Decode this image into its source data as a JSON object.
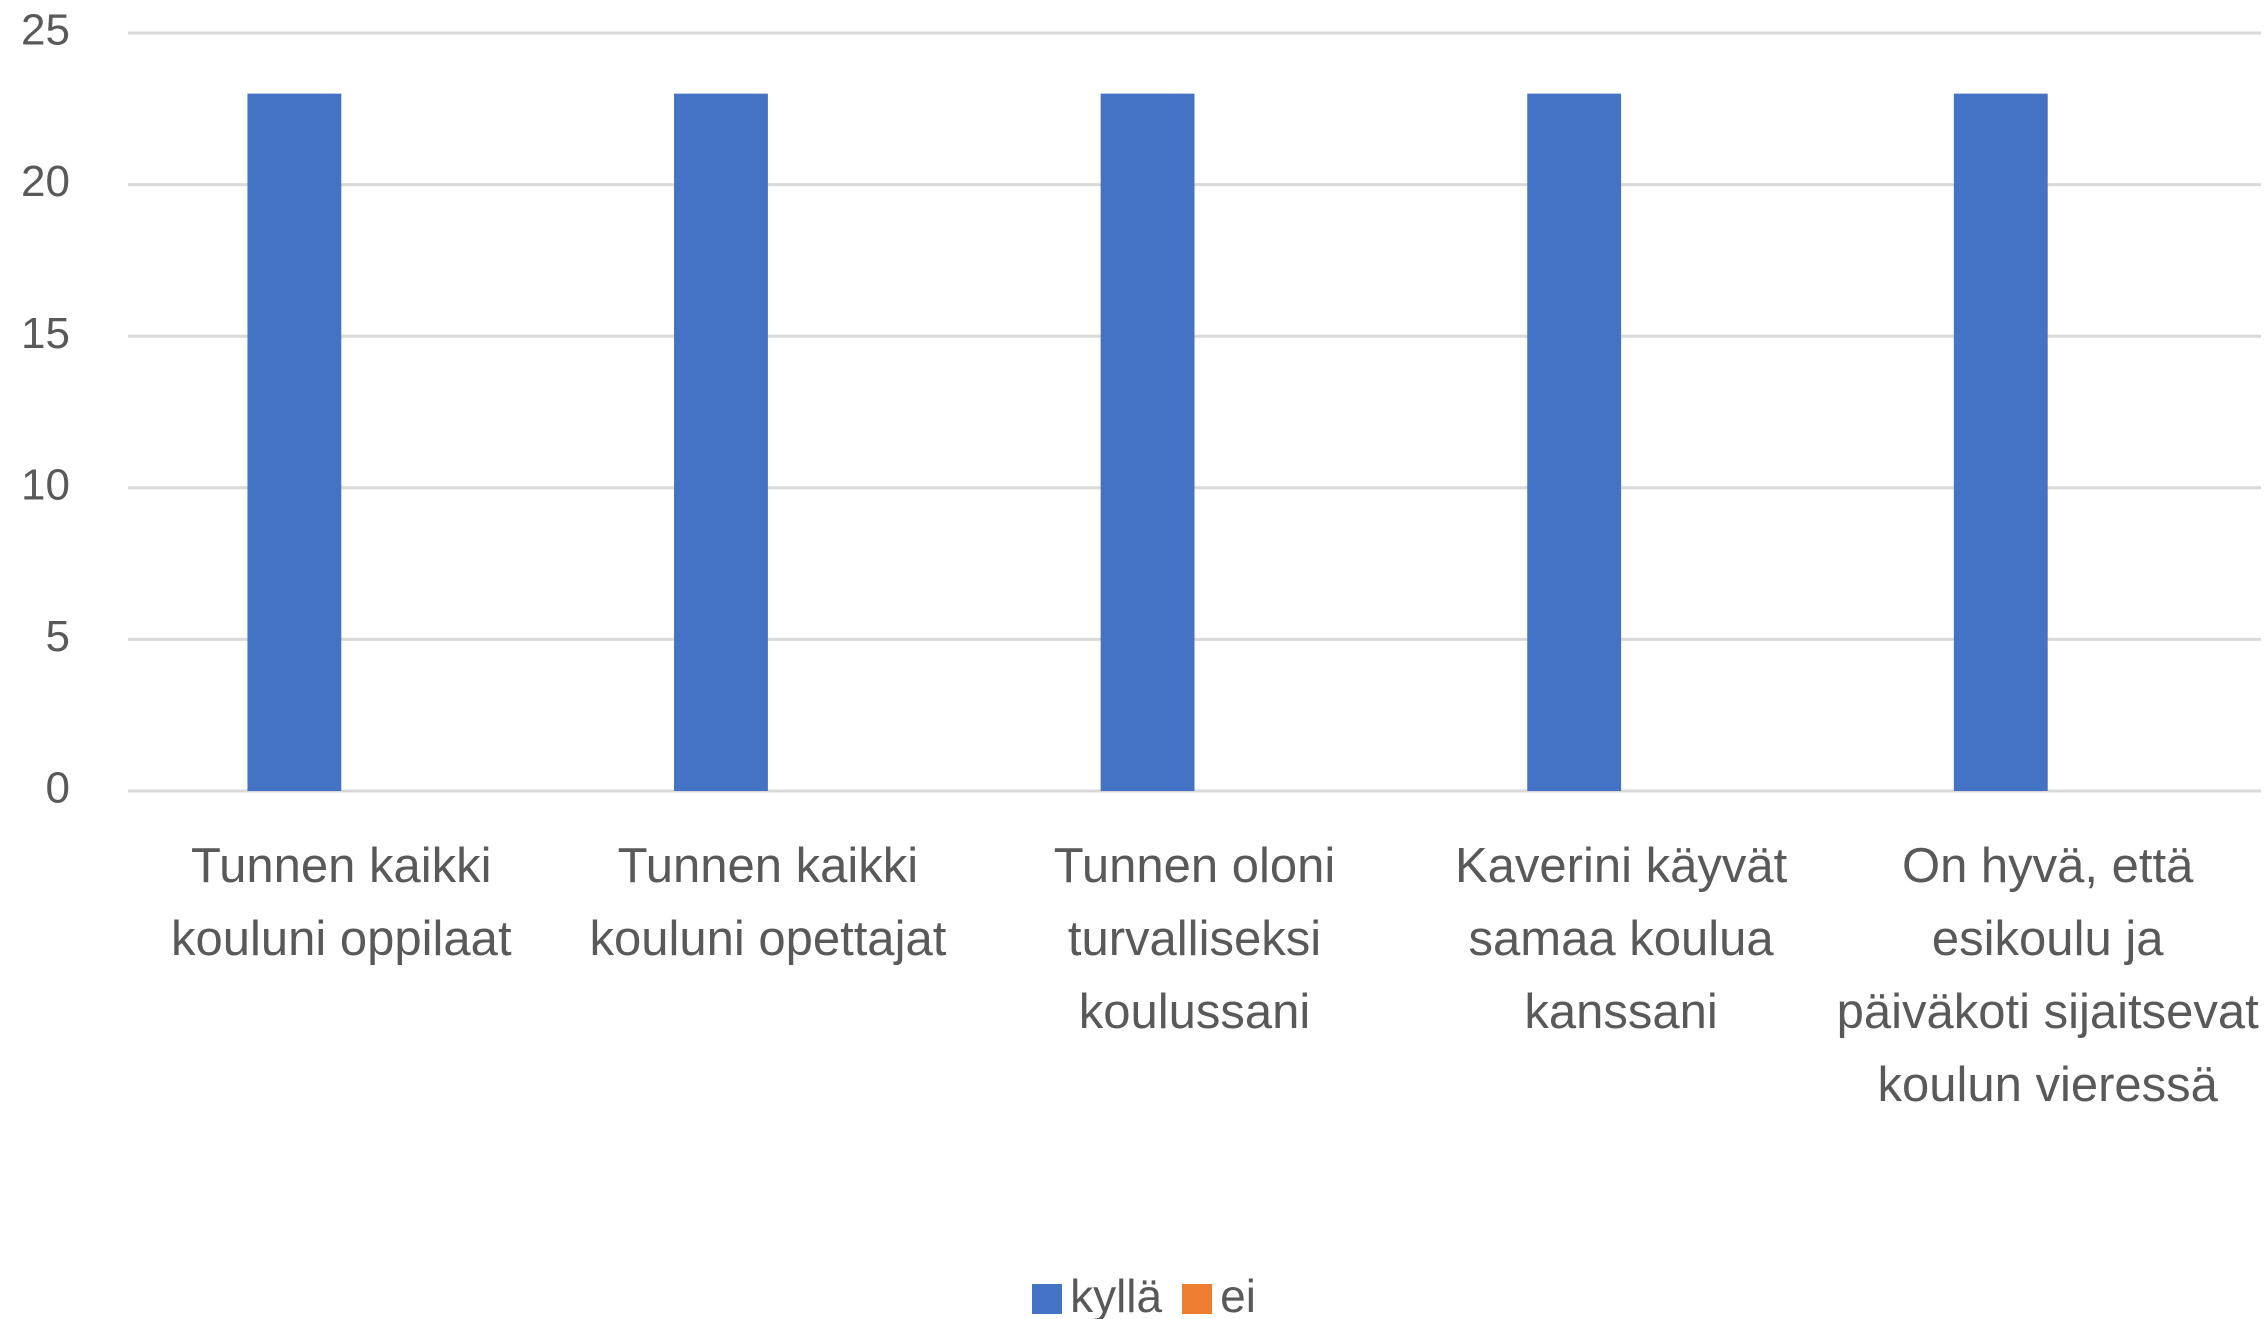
{
  "chart_data": {
    "type": "bar",
    "categories": [
      "Tunnen kaikki kouluni oppilaat",
      "Tunnen kaikki kouluni opettajat",
      "Tunnen oloni turvalliseksi koulussani",
      "Kaverini käyvät samaa koulua kanssani",
      "On hyvä, että esikoulu ja päiväkoti sijaitsevat koulun vieressä"
    ],
    "series": [
      {
        "name": "kyllä",
        "color": "#4472c4",
        "values": [
          23,
          23,
          23,
          23,
          23
        ]
      },
      {
        "name": "ei",
        "color": "#ed7d31",
        "values": [
          0,
          0,
          0,
          0,
          0
        ]
      }
    ],
    "ylim": [
      0,
      25
    ],
    "yticks": [
      0,
      5,
      10,
      15,
      20,
      25
    ],
    "grid": true,
    "legend": "bottom"
  }
}
